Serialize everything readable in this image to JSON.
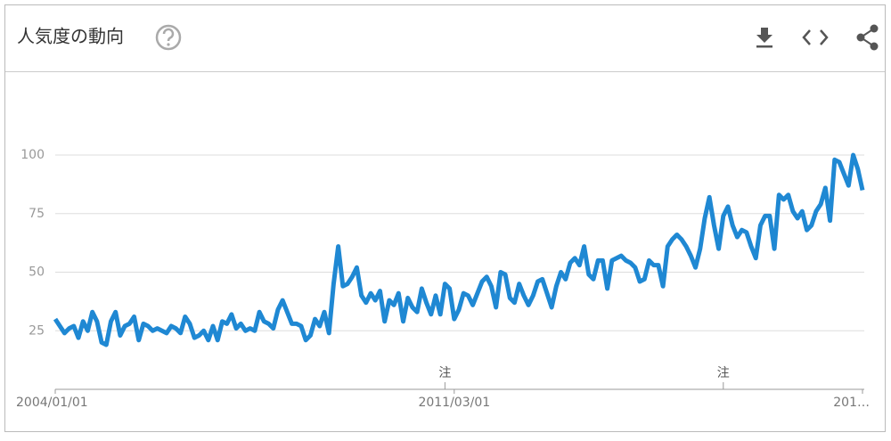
{
  "chart_data": {
    "type": "line",
    "title": "人気度の動向",
    "categories": [
      "2004/01/01",
      null,
      null,
      null,
      null,
      null,
      null,
      null,
      null,
      null,
      null,
      null,
      null,
      null,
      null,
      null,
      null,
      null,
      null,
      null,
      null,
      null,
      null,
      null,
      null,
      null,
      null,
      null,
      null,
      null,
      null,
      null,
      null,
      null,
      null,
      null,
      null,
      null,
      null,
      null,
      null,
      null,
      null,
      null,
      null,
      null,
      null,
      null,
      null,
      null,
      null,
      null,
      null,
      null,
      null,
      null,
      null,
      null,
      null,
      null,
      null,
      null,
      null,
      null,
      null,
      null,
      null,
      null,
      null,
      null,
      null,
      null,
      null,
      null,
      null,
      null,
      null,
      null,
      null,
      null,
      null,
      null,
      null,
      null,
      null,
      null,
      "2011/03/01",
      null,
      null,
      null,
      null,
      null,
      null,
      null,
      null,
      null,
      null,
      null,
      null,
      null,
      null,
      null,
      null,
      null,
      null,
      null,
      null,
      null,
      null,
      null,
      null,
      null,
      null,
      null,
      null,
      null,
      null,
      null,
      null,
      null,
      null,
      null,
      null,
      null,
      null,
      null,
      null,
      null,
      null,
      null,
      null,
      null,
      null,
      null,
      null,
      null,
      null,
      null,
      null,
      null,
      null,
      null,
      null,
      null,
      null,
      null,
      null,
      null,
      null,
      null,
      null,
      null,
      null,
      null,
      null,
      null,
      null,
      null,
      null,
      null,
      null,
      null,
      null,
      null,
      null,
      null,
      null,
      null,
      null,
      null,
      null,
      null,
      null,
      null,
      "201…"
    ],
    "values": [
      30,
      27,
      24,
      26,
      27,
      22,
      29,
      25,
      33,
      29,
      20,
      19,
      29,
      33,
      23,
      27,
      28,
      31,
      21,
      28,
      27,
      25,
      26,
      25,
      24,
      27,
      26,
      24,
      31,
      28,
      22,
      23,
      25,
      21,
      27,
      21,
      29,
      28,
      32,
      26,
      28,
      25,
      26,
      25,
      33,
      29,
      28,
      26,
      34,
      38,
      33,
      28,
      28,
      27,
      21,
      23,
      30,
      27,
      33,
      24,
      45,
      61,
      44,
      45,
      48,
      52,
      40,
      37,
      41,
      38,
      42,
      29,
      38,
      36,
      41,
      29,
      39,
      35,
      33,
      43,
      37,
      32,
      40,
      32,
      45,
      43,
      30,
      34,
      41,
      40,
      36,
      41,
      46,
      48,
      44,
      35,
      50,
      49,
      39,
      37,
      45,
      40,
      36,
      40,
      46,
      47,
      41,
      35,
      44,
      50,
      47,
      54,
      56,
      53,
      61,
      49,
      47,
      55,
      55,
      43,
      55,
      56,
      57,
      55,
      54,
      52,
      46,
      47,
      55,
      53,
      53,
      44,
      61,
      64,
      66,
      64,
      61,
      57,
      52,
      60,
      73,
      82,
      70,
      60,
      74,
      78,
      70,
      65,
      68,
      67,
      61,
      56,
      70,
      74,
      74,
      60,
      83,
      81,
      83,
      76,
      73,
      76,
      68,
      70,
      76,
      79,
      86,
      72,
      98,
      97,
      92,
      87,
      100,
      94,
      85
    ],
    "color": "#1f88d3",
    "ylim": [
      0,
      135
    ],
    "yticks": [
      25,
      50,
      75,
      100
    ],
    "grid": true,
    "annotations": [
      {
        "text": "注",
        "category_index": 84
      },
      {
        "text": "注",
        "category_index": 144
      }
    ]
  }
}
